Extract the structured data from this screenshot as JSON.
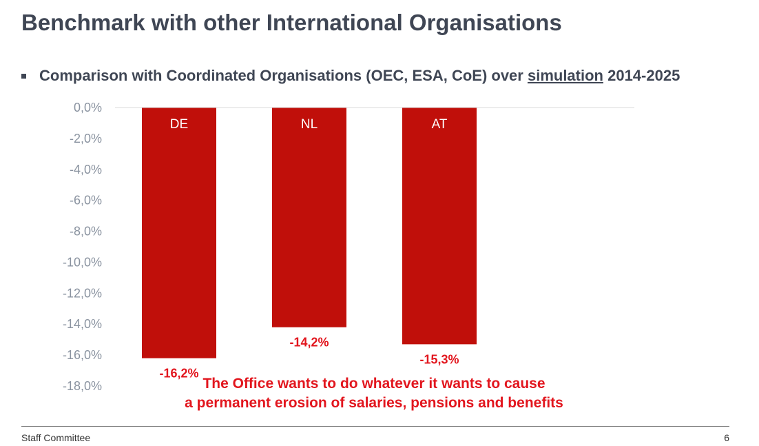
{
  "slide": {
    "title": "Benchmark with other International Organisations",
    "bullet": {
      "prefix": "Comparison with Coordinated Organisations (OEC, ESA, CoE) over ",
      "underlined": "simulation",
      "suffix": " 2014-2025"
    },
    "callout": [
      "The Office wants to do whatever it wants to cause",
      "a permanent erosion of salaries, pensions and benefits"
    ],
    "footer": {
      "left": "Staff Committee",
      "page_number": "6"
    }
  },
  "colors": {
    "bar": "#c00f0a",
    "value_label": "#e2161e",
    "tick_label": "#8a93a0",
    "heading": "#3f4654"
  },
  "chart_data": {
    "type": "bar",
    "categories": [
      "DE",
      "NL",
      "AT"
    ],
    "values": [
      -16.2,
      -14.2,
      -15.3
    ],
    "value_labels": [
      "-16,2%",
      "-14,2%",
      "-15,3%"
    ],
    "ylim": [
      -18,
      0
    ],
    "yticks": [
      0,
      -2,
      -4,
      -6,
      -8,
      -10,
      -12,
      -14,
      -16,
      -18
    ],
    "ytick_labels": [
      "0,0%",
      "-2,0%",
      "-4,0%",
      "-6,0%",
      "-8,0%",
      "-10,0%",
      "-12,0%",
      "-14,0%",
      "-16,0%",
      "-18,0%"
    ],
    "title": "",
    "xlabel": "",
    "ylabel": "",
    "grid": false,
    "legend": "none"
  }
}
